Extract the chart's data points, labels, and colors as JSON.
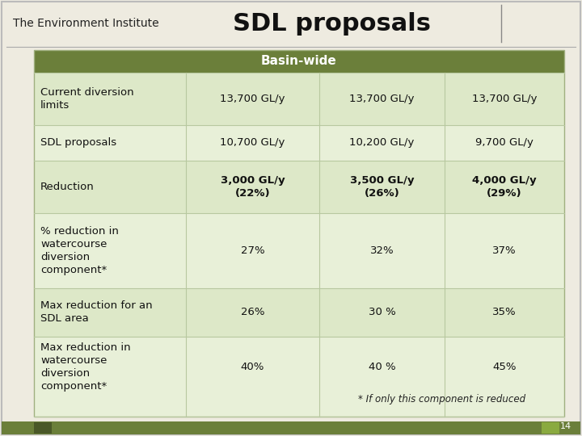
{
  "title": "SDL proposals",
  "institute": "The Environment Institute",
  "header_text": "Basin-wide",
  "header_bg": "#6b7f3a",
  "header_fg": "#ffffff",
  "page_bg": "#eeebe0",
  "table_bg_even": "#dde8c8",
  "table_bg_odd": "#e8f0d8",
  "footer_bar_color": "#6b7f3a",
  "page_number": "14",
  "title_fontsize": 22,
  "header_fontsize": 11,
  "cell_fontsize": 9.5,
  "institute_fontsize": 10,
  "rows": [
    {
      "label": "Current diversion\nlimits",
      "col1": "13,700 GL/y",
      "col2": "13,700 GL/y",
      "col3": "13,700 GL/y",
      "bold": false,
      "footnote": ""
    },
    {
      "label": "SDL proposals",
      "col1": "10,700 GL/y",
      "col2": "10,200 GL/y",
      "col3": "9,700 GL/y",
      "bold": false,
      "footnote": ""
    },
    {
      "label": "Reduction",
      "col1": "3,000 GL/y\n(22%)",
      "col2": "3,500 GL/y\n(26%)",
      "col3": "4,000 GL/y\n(29%)",
      "bold": true,
      "footnote": ""
    },
    {
      "label": "% reduction in\nwatercourse\ndiversion\ncomponent*",
      "col1": "27%",
      "col2": "32%",
      "col3": "37%",
      "bold": false,
      "footnote": ""
    },
    {
      "label": "Max reduction for an\nSDL area",
      "col1": "26%",
      "col2": "30 %",
      "col3": "35%",
      "bold": false,
      "footnote": ""
    },
    {
      "label": "Max reduction in\nwatercourse\ndiversion\ncomponent*",
      "col1": "40%",
      "col2": "40 %",
      "col3": "45%",
      "bold": false,
      "footnote": "* If only this component is reduced"
    }
  ]
}
